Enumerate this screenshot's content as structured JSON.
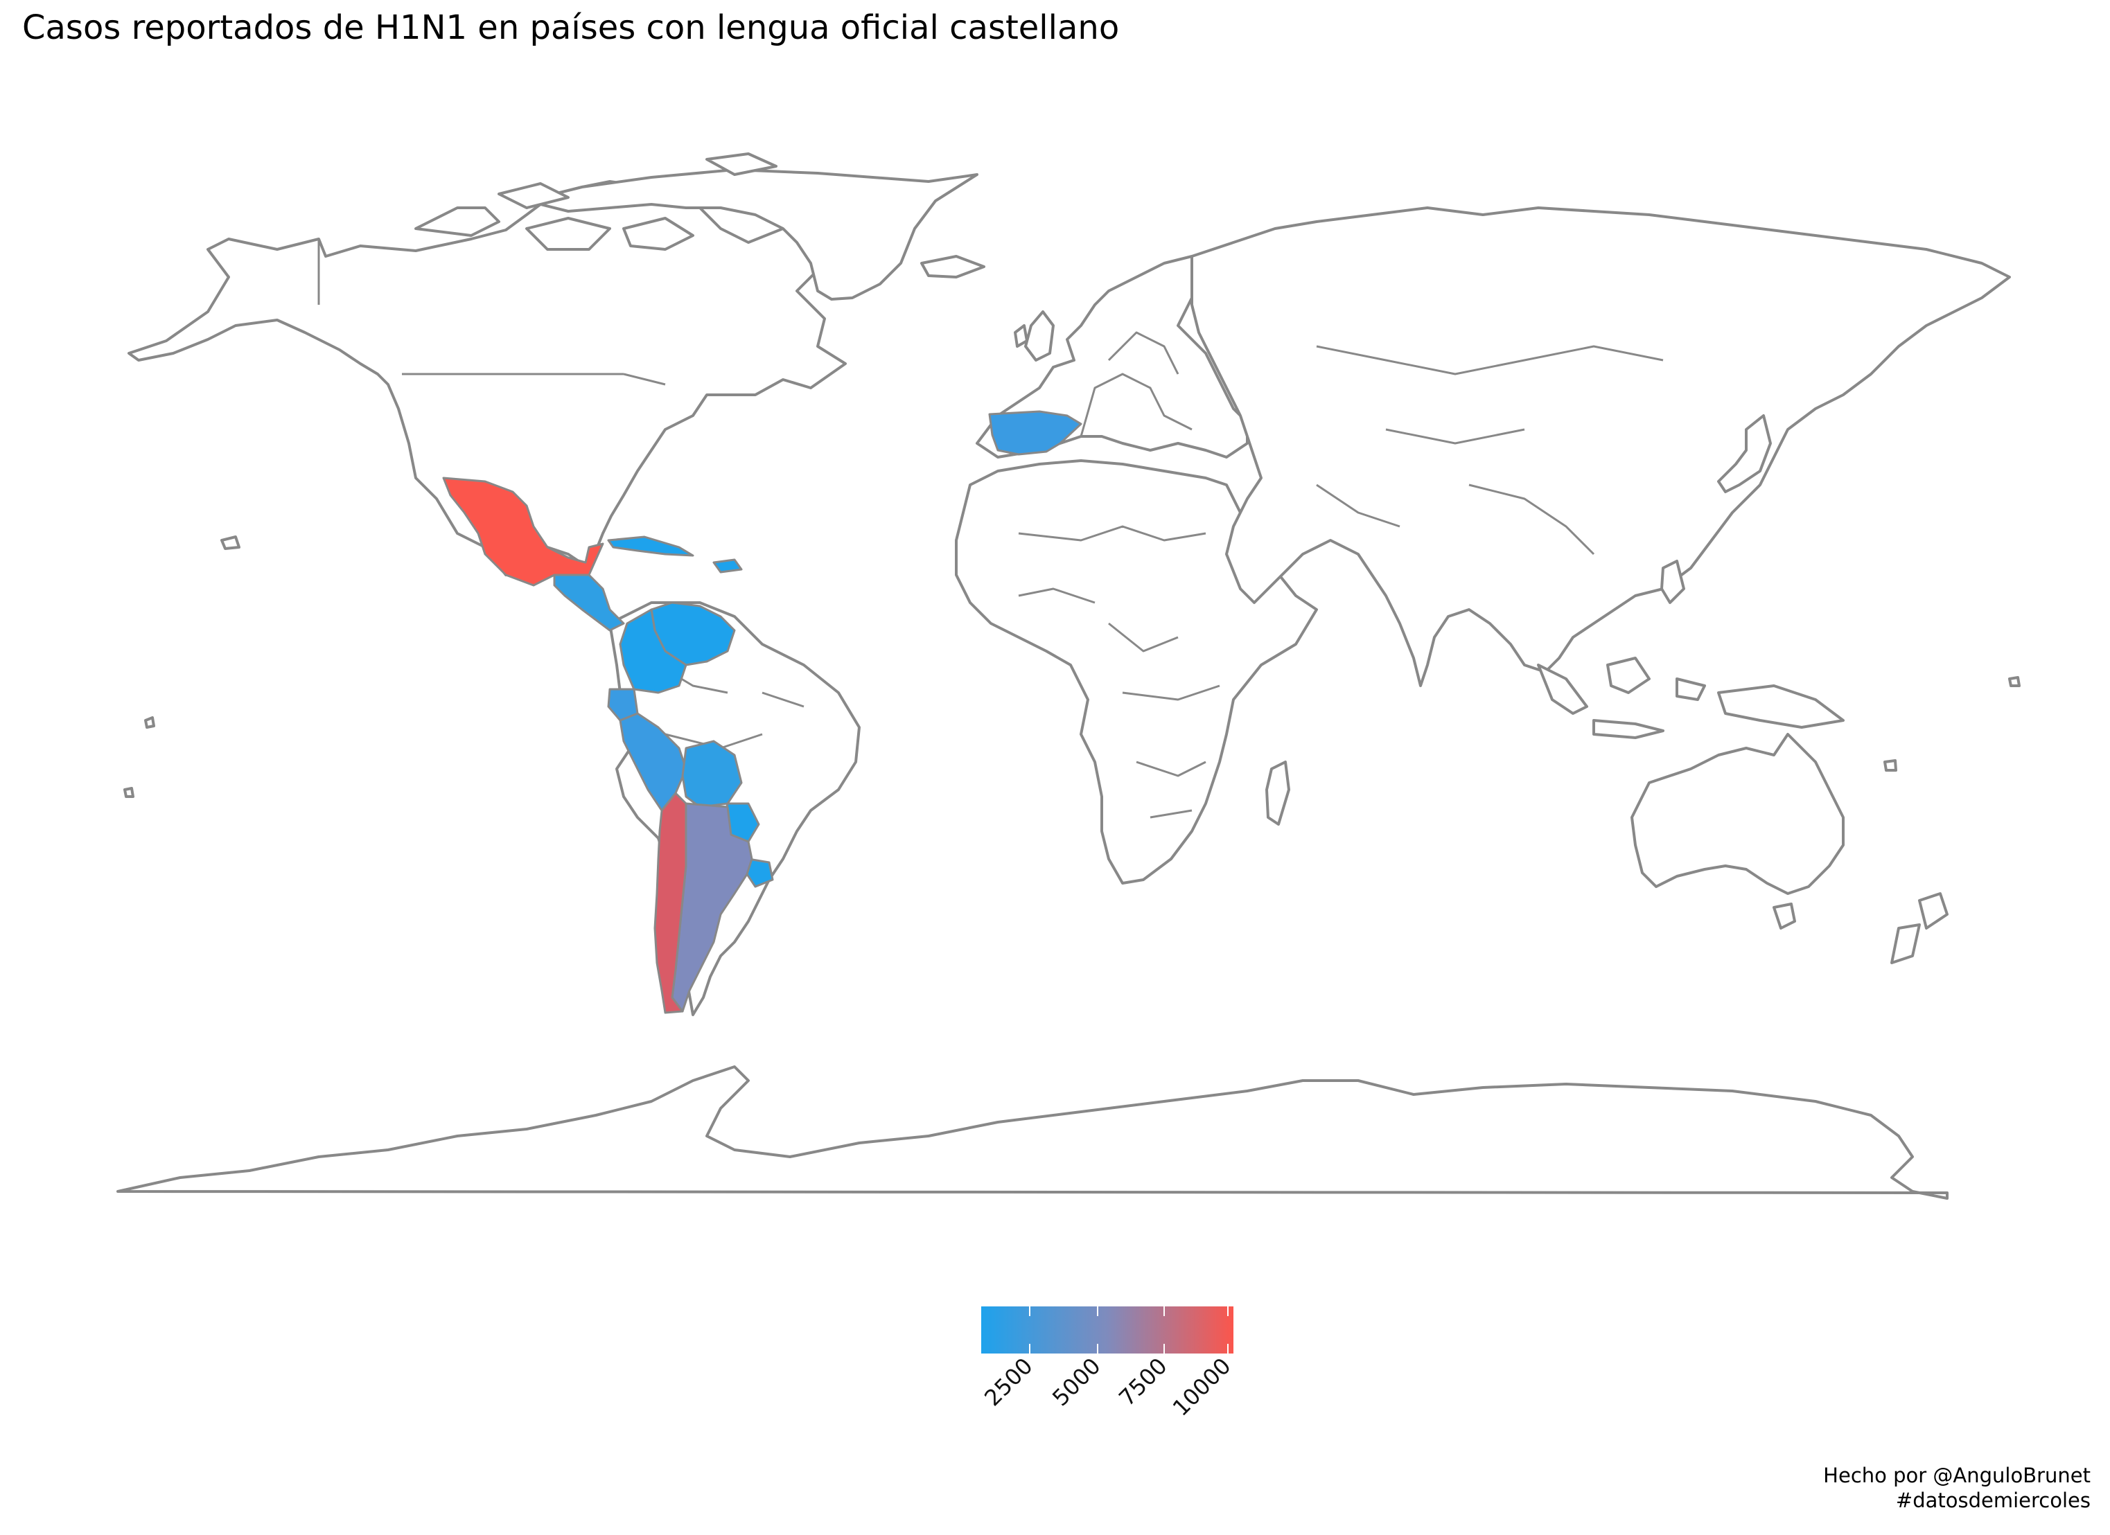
{
  "title": "Casos reportados de H1N1 en países con lengua oficial castellano",
  "legend": {
    "ticks": [
      "2500",
      "5000",
      "7500",
      "10000"
    ],
    "colors": {
      "low": "#1ea2ec",
      "mid": "#7f8bbd",
      "high": "#fb564c"
    }
  },
  "colors": {
    "border": "#888888",
    "land": "#ffffff",
    "background": "#ffffff"
  },
  "credit": {
    "line1": "Hecho por @AnguloBrunet",
    "line2": "#datosdemiercoles"
  },
  "chart_data": {
    "type": "choropleth",
    "title": "Casos reportados de H1N1 en países con lengua oficial castellano",
    "legend_range": [
      1000,
      10000
    ],
    "legend_ticks": [
      2500,
      5000,
      7500,
      10000
    ],
    "fill_scale": [
      "#1ea2ec",
      "#fb564c"
    ],
    "highlighted_countries": [
      "México",
      "España",
      "Cuba",
      "República Dominicana",
      "Guatemala",
      "El Salvador",
      "Honduras",
      "Nicaragua",
      "Costa Rica",
      "Panamá",
      "Venezuela",
      "Colombia",
      "Ecuador",
      "Perú",
      "Bolivia",
      "Paraguay",
      "Uruguay",
      "Argentina",
      "Chile"
    ]
  }
}
